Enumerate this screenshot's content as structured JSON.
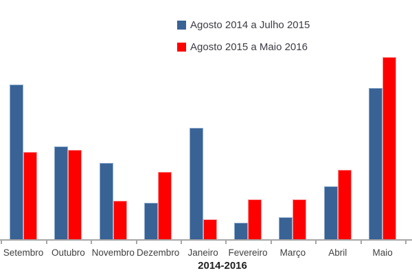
{
  "chart_data": {
    "type": "bar",
    "title": "",
    "xlabel": "2014-2016",
    "ylabel": "",
    "categories": [
      "Setembro",
      "Outubro",
      "Novembro",
      "Dezembro",
      "Janeiro",
      "Fevereiro",
      "Março",
      "Abril",
      "Maio"
    ],
    "series": [
      {
        "name": "Agosto 2014 a Julho 2015",
        "color": "#396295",
        "border_color": "#8fafd0",
        "values": [
          85,
          51,
          42,
          20,
          61,
          9,
          12,
          29,
          83
        ]
      },
      {
        "name": "Agosto 2015 a Maio 2016",
        "color": "#fe0000",
        "border_color": "#fc9c9c",
        "values": [
          48,
          49,
          21,
          37,
          11,
          22,
          22,
          38,
          100
        ]
      }
    ],
    "ylim": [
      0,
      100
    ],
    "y_axis_visible": false,
    "grid": false,
    "legend_position": "top-center",
    "axis_color": "#a6a6a6",
    "tick_label_color": "#3f3f3f",
    "legend_text_color": "#3b3b44",
    "xlabel_color": "#1f1f1f",
    "value_note": "No y-axis labels visible; values are relative units where 100 = tallest bar"
  }
}
